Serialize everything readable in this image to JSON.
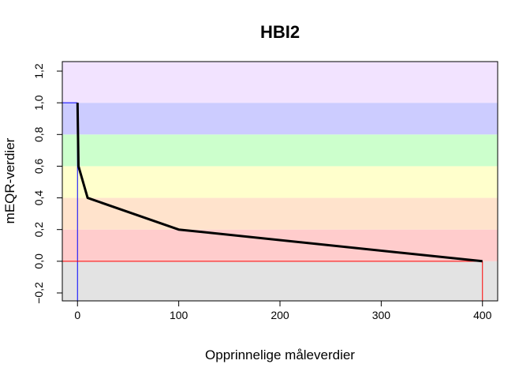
{
  "chart_data": {
    "type": "line",
    "title": "HBI2",
    "xlabel": "Opprinnelige måleverdier",
    "ylabel": "mEQR-verdier",
    "xlim": [
      -15,
      415
    ],
    "ylim": [
      -0.25,
      1.26
    ],
    "x_ticks": [
      0,
      100,
      200,
      300,
      400
    ],
    "x_tick_labels": [
      "0",
      "100",
      "200",
      "300",
      "400"
    ],
    "y_ticks": [
      -0.2,
      0.0,
      0.2,
      0.4,
      0.6,
      0.8,
      1.0,
      1.2
    ],
    "y_tick_labels": [
      "−0,2",
      "0,0",
      "0,2",
      "0,4",
      "0,6",
      "0,8",
      "1,0",
      "1,2"
    ],
    "bands": [
      {
        "from": -0.25,
        "to": 0.0,
        "color": "#e3e3e3"
      },
      {
        "from": 0.0,
        "to": 0.2,
        "color": "#ffcccc"
      },
      {
        "from": 0.2,
        "to": 0.4,
        "color": "#ffe3cc"
      },
      {
        "from": 0.4,
        "to": 0.6,
        "color": "#ffffcc"
      },
      {
        "from": 0.6,
        "to": 0.8,
        "color": "#ccffcc"
      },
      {
        "from": 0.8,
        "to": 1.0,
        "color": "#ccccff"
      },
      {
        "from": 1.0,
        "to": 1.26,
        "color": "#f2e3ff"
      }
    ],
    "series": [
      {
        "x": [
          0,
          1,
          10,
          100,
          400
        ],
        "y": [
          1.0,
          0.6,
          0.4,
          0.2,
          0.0
        ],
        "color": "#000000"
      }
    ],
    "reference_lines": [
      {
        "type": "vertical",
        "x": 0,
        "y_from": -0.25,
        "y_to": 1.0,
        "color": "#0000ff"
      },
      {
        "type": "horizontal",
        "y": 1.0,
        "x_from": -15,
        "x_to": 0,
        "color": "#0000ff"
      },
      {
        "type": "vertical",
        "x": 400,
        "y_from": -0.25,
        "y_to": 0.0,
        "color": "#ff0000"
      },
      {
        "type": "horizontal",
        "y": 0.0,
        "x_from": -15,
        "x_to": 400,
        "color": "#ff0000"
      }
    ]
  }
}
